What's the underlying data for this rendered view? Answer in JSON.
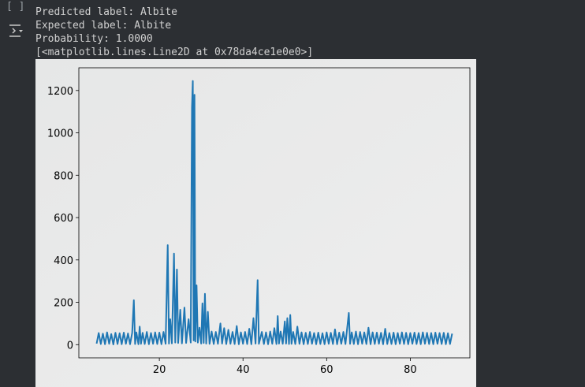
{
  "output_lines": [
    "Predicted label: Albite",
    "Expected label: Albite",
    "Probability: 1.0000",
    "[<matplotlib.lines.Line2D at 0x78da4ce1e0e0>]"
  ],
  "chart_data": {
    "type": "line",
    "x": [
      5,
      5.5,
      6,
      6.5,
      7,
      7.5,
      8,
      8.5,
      9,
      9.5,
      10,
      10.5,
      11,
      11.5,
      12,
      12.5,
      13,
      13.5,
      13.9,
      14.2,
      14.5,
      15,
      15.3,
      15.6,
      16,
      16.5,
      17,
      17.5,
      18,
      18.5,
      19,
      19.5,
      20,
      20.5,
      21,
      21.5,
      22,
      22.3,
      22.6,
      23,
      23.5,
      23.8,
      24.2,
      24.5,
      25,
      25.4,
      26,
      26.4,
      27,
      27.5,
      27.8,
      28,
      28.2,
      28.4,
      28.6,
      28.9,
      29.2,
      29.6,
      30,
      30.3,
      30.6,
      30.9,
      31.2,
      31.6,
      32,
      32.5,
      33,
      33.5,
      34,
      34.6,
      35,
      35.5,
      36,
      36.5,
      37,
      37.5,
      38,
      38.5,
      39,
      39.5,
      40,
      40.5,
      41,
      41.5,
      42,
      42.5,
      43,
      43.5,
      43.8,
      44.5,
      45,
      45.5,
      46,
      46.5,
      47,
      47.5,
      48,
      48.3,
      48.6,
      49,
      49.5,
      50,
      50.3,
      50.6,
      51,
      51.3,
      51.6,
      52,
      52.5,
      53,
      53.5,
      54,
      54.5,
      55,
      55.5,
      56,
      56.5,
      57,
      57.5,
      58,
      58.5,
      59,
      59.5,
      60,
      60.5,
      61,
      61.5,
      62,
      62.5,
      63,
      63.5,
      64,
      64.5,
      65.3,
      65.6,
      66,
      66.5,
      67,
      67.5,
      68,
      68.5,
      69,
      69.5,
      70,
      70.5,
      71,
      71.5,
      72,
      72.5,
      73,
      73.5,
      74,
      74.5,
      75,
      75.5,
      76,
      76.5,
      77,
      77.5,
      78,
      78.5,
      79,
      79.5,
      80,
      80.5,
      81,
      81.5,
      82,
      82.5,
      83,
      83.5,
      84,
      84.5,
      85,
      85.5,
      86,
      86.5,
      87,
      87.5,
      88,
      88.5,
      89,
      89.5,
      90
    ],
    "series": [
      {
        "color": "#1f77b4",
        "values": [
          5,
          55,
          3,
          52,
          2,
          58,
          4,
          50,
          1,
          56,
          3,
          54,
          2,
          57,
          4,
          53,
          2,
          55,
          210,
          3,
          58,
          2,
          85,
          4,
          56,
          3,
          60,
          2,
          55,
          4,
          58,
          3,
          57,
          2,
          60,
          4,
          470,
          5,
          120,
          6,
          430,
          10,
          355,
          8,
          165,
          6,
          175,
          8,
          120,
          10,
          1120,
          1245,
          20,
          1180,
          15,
          280,
          10,
          80,
          5,
          195,
          8,
          240,
          5,
          155,
          4,
          62,
          3,
          60,
          4,
          100,
          5,
          78,
          3,
          70,
          4,
          60,
          3,
          88,
          2,
          58,
          4,
          60,
          3,
          75,
          2,
          125,
          5,
          305,
          4,
          60,
          3,
          58,
          2,
          62,
          4,
          78,
          3,
          135,
          5,
          62,
          4,
          110,
          5,
          125,
          3,
          140,
          4,
          60,
          3,
          85,
          4,
          58,
          2,
          56,
          3,
          60,
          4,
          55,
          2,
          57,
          3,
          54,
          2,
          58,
          4,
          56,
          3,
          72,
          2,
          57,
          4,
          60,
          3,
          150,
          4,
          58,
          3,
          62,
          2,
          60,
          4,
          58,
          3,
          80,
          2,
          58,
          3,
          57,
          4,
          56,
          2,
          75,
          3,
          55,
          3,
          57,
          2,
          55,
          4,
          58,
          3,
          56,
          2,
          55,
          4,
          57,
          3,
          55,
          2,
          58,
          4,
          56,
          3,
          55,
          2,
          57,
          4,
          55,
          3,
          56,
          2,
          54,
          3,
          52
        ]
      }
    ],
    "xlim": [
      0.75,
      94.25
    ],
    "xticks": [
      20,
      40,
      60,
      80
    ],
    "ylim": [
      -62.25,
      1307.25
    ],
    "yticks": [
      0,
      200,
      400,
      600,
      800,
      1000,
      1200
    ]
  }
}
